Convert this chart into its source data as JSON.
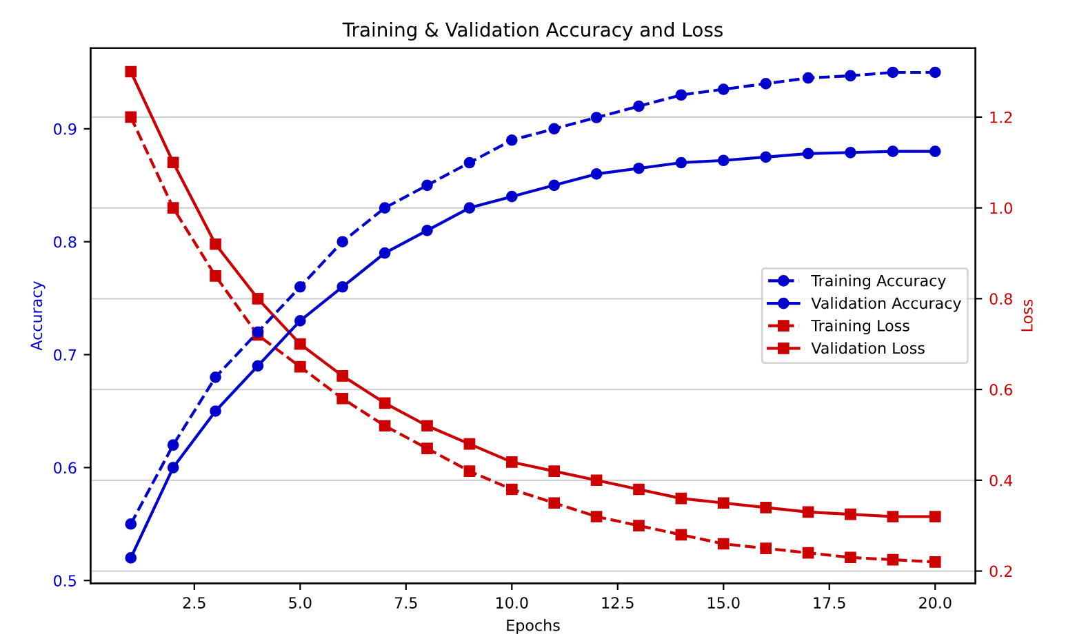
{
  "chart_data": {
    "type": "line",
    "title": "Training & Validation Accuracy and Loss",
    "xlabel": "Epochs",
    "ylabel": "Accuracy",
    "y2label": "Loss",
    "x": [
      1,
      2,
      3,
      4,
      5,
      6,
      7,
      8,
      9,
      10,
      11,
      12,
      13,
      14,
      15,
      16,
      17,
      18,
      19,
      20
    ],
    "series": [
      {
        "name": "Training Accuracy",
        "color": "#0000cc",
        "line_style": "dashed",
        "marker": "circle",
        "values": [
          0.55,
          0.62,
          0.68,
          0.72,
          0.76,
          0.8,
          0.83,
          0.85,
          0.87,
          0.89,
          0.9,
          0.91,
          0.92,
          0.93,
          0.935,
          0.94,
          0.945,
          0.947,
          0.95,
          0.95
        ]
      },
      {
        "name": "Validation Accuracy",
        "color": "#0000cc",
        "line_style": "solid",
        "marker": "circle",
        "values": [
          0.52,
          0.6,
          0.65,
          0.69,
          0.73,
          0.76,
          0.79,
          0.81,
          0.83,
          0.84,
          0.85,
          0.86,
          0.865,
          0.87,
          0.872,
          0.875,
          0.878,
          0.879,
          0.88,
          0.88
        ]
      },
      {
        "name": "Training Loss",
        "color": "#cc0000",
        "line_style": "dashed",
        "marker": "square",
        "axis": "y2",
        "values": [
          1.2,
          1.0,
          0.85,
          0.72,
          0.65,
          0.58,
          0.52,
          0.47,
          0.42,
          0.38,
          0.35,
          0.32,
          0.3,
          0.28,
          0.26,
          0.25,
          0.24,
          0.23,
          0.225,
          0.22
        ]
      },
      {
        "name": "Validation Loss",
        "color": "#cc0000",
        "line_style": "solid",
        "marker": "square",
        "axis": "y2",
        "values": [
          1.3,
          1.1,
          0.92,
          0.8,
          0.7,
          0.63,
          0.57,
          0.52,
          0.48,
          0.44,
          0.42,
          0.4,
          0.38,
          0.36,
          0.35,
          0.34,
          0.33,
          0.325,
          0.32,
          0.32
        ]
      }
    ],
    "xlim": [
      0.05,
      20.95
    ],
    "xticks": [
      {
        "value": 2.5,
        "label": "2.5"
      },
      {
        "value": 5,
        "label": "5.0"
      },
      {
        "value": 7.5,
        "label": "7.5"
      },
      {
        "value": 10,
        "label": "10.0"
      },
      {
        "value": 12.5,
        "label": "12.5"
      },
      {
        "value": 15,
        "label": "15.0"
      },
      {
        "value": 17.5,
        "label": "17.5"
      },
      {
        "value": 20,
        "label": "20.0"
      }
    ],
    "ylim": [
      0.4975,
      0.9715
    ],
    "yticks": [
      0.5,
      0.6,
      0.7,
      0.8,
      0.9
    ],
    "y2lim": [
      0.173,
      1.352
    ],
    "y2ticks": [
      0.2,
      0.4,
      0.6,
      0.8,
      {
        "value": 1.0,
        "label": "1.0"
      },
      1.2
    ],
    "grid": "y2",
    "legend": "center right"
  }
}
